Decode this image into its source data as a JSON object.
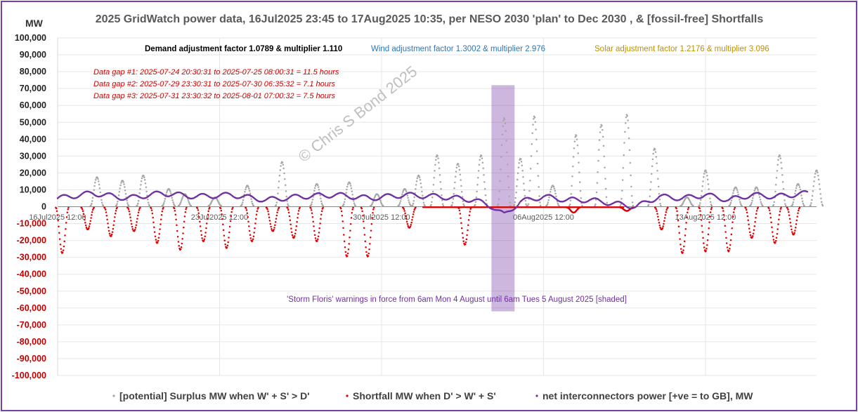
{
  "chart_data": {
    "type": "scatter",
    "title": "2025 GridWatch power data, 16Jul2025 23:45 to 17Aug2025 10:35,  per NESO 2030 'plan' to Dec 2030 , & [fossil-free] Shortfalls",
    "ylabel": "MW",
    "ylim": [
      -100000,
      100000
    ],
    "ytick_step": 10000,
    "xlim_days": [
      0,
      32.8
    ],
    "x_ticks": [
      {
        "label": "16Jul2025 12:00",
        "day": 0
      },
      {
        "label": "23Jul2025 12:00",
        "day": 7
      },
      {
        "label": "30Jul2025 12:00",
        "day": 14
      },
      {
        "label": "06Aug2025 12:00",
        "day": 21
      },
      {
        "label": "13Aug2025 12:00",
        "day": 28
      }
    ],
    "annotations": {
      "demand": "Demand adjustment factor 1.0789 & multiplier 1.110",
      "wind": "Wind adjustment factor 1.3002 & multiplier 2.976",
      "solar": "Solar adjustment factor 1.2176 & multiplier 3.096",
      "gaps": [
        "Data gap #1:  2025-07-24 20:30:31 to  2025-07-25 08:00:31 = 11.5 hours",
        "Data gap #2:  2025-07-29 23:30:31 to  2025-07-30 06:35:32 = 7.1 hours",
        "Data gap #3:  2025-07-31 23:30:32 to  2025-08-01 07:00:32 = 7.5 hours"
      ],
      "storm": "'Storm Floris' warnings in force from 6am Mon 4 August until 6am Tues 5 August 2025 [shaded]",
      "watermark": "© Chris S Bond  2025"
    },
    "storm_band": {
      "start_day": 18.75,
      "end_day": 19.75,
      "y_top": 72000,
      "y_bottom": -62000
    },
    "series": [
      {
        "name": "[potential] Surplus MW when W' + S' > D'",
        "color": "#a6a6a6",
        "peaks": [
          [
            1.7,
            17000
          ],
          [
            2.8,
            15000
          ],
          [
            3.7,
            18000
          ],
          [
            4.8,
            10000
          ],
          [
            5.5,
            7000
          ],
          [
            6.8,
            5000
          ],
          [
            8.2,
            12000
          ],
          [
            9.7,
            26000
          ],
          [
            11.2,
            13000
          ],
          [
            12.6,
            14000
          ],
          [
            13.8,
            7000
          ],
          [
            15.0,
            10000
          ],
          [
            15.6,
            18000
          ],
          [
            16.4,
            30000
          ],
          [
            17.3,
            25000
          ],
          [
            18.3,
            30000
          ],
          [
            19.3,
            52000
          ],
          [
            20.0,
            28000
          ],
          [
            20.6,
            53000
          ],
          [
            21.4,
            12000
          ],
          [
            22.4,
            42000
          ],
          [
            23.5,
            48000
          ],
          [
            24.6,
            54000
          ],
          [
            25.8,
            34000
          ],
          [
            27.2,
            5000
          ],
          [
            28.0,
            21000
          ],
          [
            29.3,
            11000
          ],
          [
            30.2,
            11000
          ],
          [
            31.2,
            30000
          ],
          [
            32.0,
            13000
          ],
          [
            32.8,
            21000
          ]
        ]
      },
      {
        "name": "Shortfall MW when D' > W' + S'",
        "color": "#e00000",
        "troughs": [
          [
            0.2,
            -27000
          ],
          [
            1.3,
            -13000
          ],
          [
            2.3,
            -17000
          ],
          [
            3.3,
            -14000
          ],
          [
            4.3,
            -21000
          ],
          [
            5.3,
            -25000
          ],
          [
            6.3,
            -20000
          ],
          [
            7.3,
            -24000
          ],
          [
            8.4,
            -20000
          ],
          [
            9.3,
            -14000
          ],
          [
            10.2,
            -18000
          ],
          [
            11.2,
            -20000
          ],
          [
            12.5,
            -29000
          ],
          [
            13.4,
            -29000
          ],
          [
            15.2,
            -12000
          ],
          [
            17.6,
            -22000
          ],
          [
            22.3,
            -3000
          ],
          [
            24.6,
            -2000
          ],
          [
            26.1,
            -13000
          ],
          [
            27.0,
            -27000
          ],
          [
            28.0,
            -26000
          ],
          [
            29.0,
            -26000
          ],
          [
            30.0,
            -18000
          ],
          [
            31.0,
            -21000
          ],
          [
            31.8,
            -16000
          ]
        ]
      },
      {
        "name": "net interconnectors power [+ve = to GB], MW",
        "color": "#7030a0",
        "levels": [
          [
            0,
            5000
          ],
          [
            1.5,
            8000
          ],
          [
            3,
            5000
          ],
          [
            4.5,
            8000
          ],
          [
            6,
            6000
          ],
          [
            7.5,
            7000
          ],
          [
            9,
            4000
          ],
          [
            10.5,
            6000
          ],
          [
            12,
            7000
          ],
          [
            13.5,
            5000
          ],
          [
            15,
            7000
          ],
          [
            16.5,
            6000
          ],
          [
            18,
            4000
          ],
          [
            18.8,
            0
          ],
          [
            19.3,
            -5000
          ],
          [
            20,
            3000
          ],
          [
            21,
            6000
          ],
          [
            22,
            4000
          ],
          [
            23,
            4000
          ],
          [
            24,
            2000
          ],
          [
            25,
            0
          ],
          [
            26,
            6000
          ],
          [
            27,
            5000
          ],
          [
            28,
            7000
          ],
          [
            29,
            4000
          ],
          [
            30,
            7000
          ],
          [
            31,
            6000
          ],
          [
            32.4,
            8000
          ]
        ]
      }
    ]
  }
}
